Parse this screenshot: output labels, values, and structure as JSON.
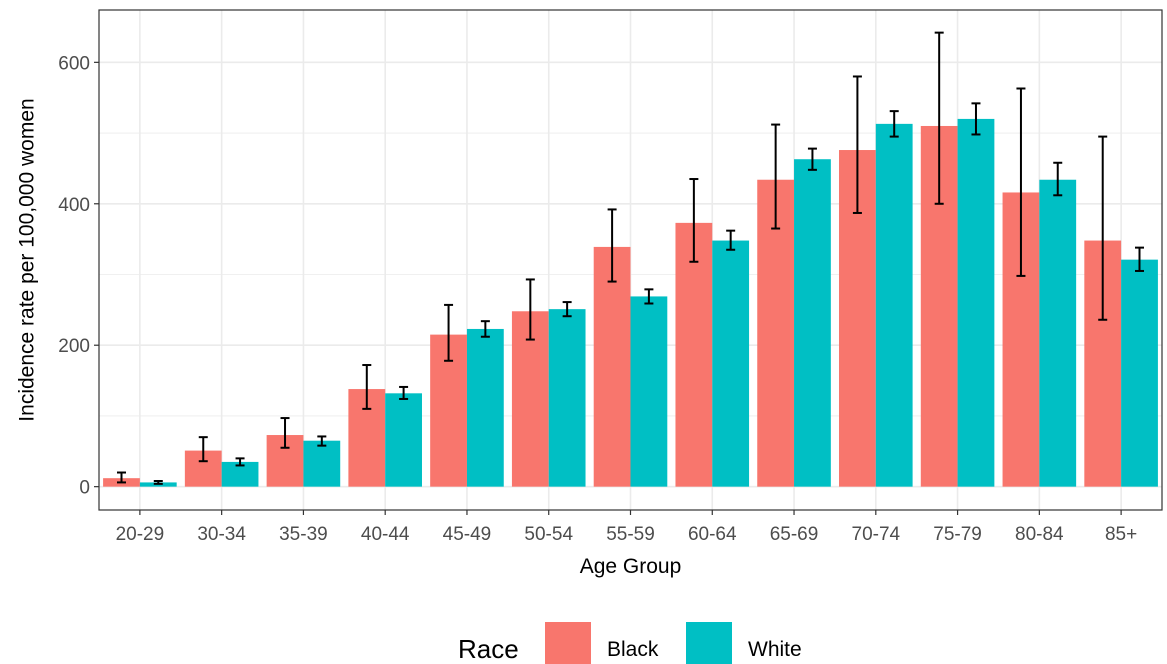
{
  "chart_data": {
    "type": "bar",
    "xlabel": "Age Group",
    "ylabel": "Incidence rate per 100,000 women",
    "categories": [
      "20-29",
      "30-34",
      "35-39",
      "40-44",
      "45-49",
      "50-54",
      "55-59",
      "60-64",
      "65-69",
      "70-74",
      "75-79",
      "80-84",
      "85+"
    ],
    "ylim": [
      -33,
      674
    ],
    "yticks": [
      0,
      200,
      400,
      600
    ],
    "grid": true,
    "legend": {
      "title": "Race",
      "position": "bottom"
    },
    "series": [
      {
        "name": "Black",
        "color": "#F8766D",
        "values": [
          12,
          51,
          73,
          138,
          215,
          248,
          339,
          373,
          434,
          476,
          510,
          416,
          348
        ],
        "error_low": [
          6,
          36,
          55,
          110,
          178,
          208,
          290,
          318,
          365,
          387,
          400,
          298,
          236
        ],
        "error_high": [
          20,
          70,
          97,
          172,
          257,
          293,
          392,
          435,
          512,
          580,
          642,
          563,
          495
        ]
      },
      {
        "name": "White",
        "color": "#00BFC4",
        "values": [
          6,
          35,
          65,
          132,
          223,
          251,
          269,
          348,
          463,
          513,
          520,
          434,
          321
        ],
        "error_low": [
          4,
          30,
          58,
          124,
          212,
          241,
          259,
          335,
          448,
          495,
          498,
          412,
          305
        ],
        "error_high": [
          8,
          40,
          71,
          141,
          234,
          261,
          279,
          362,
          478,
          531,
          542,
          458,
          338
        ]
      }
    ]
  }
}
